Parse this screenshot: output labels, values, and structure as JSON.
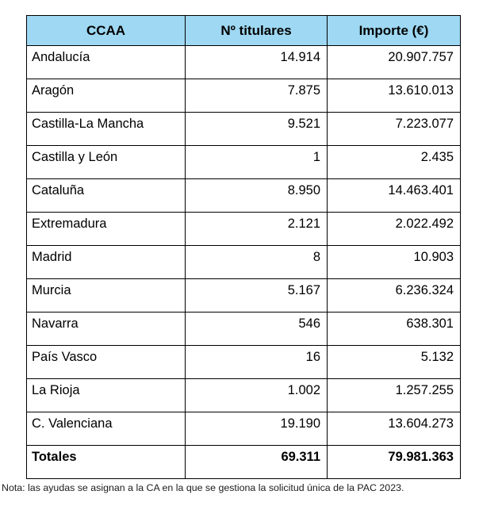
{
  "colors": {
    "header_bg": "#9ED8F2",
    "border": "#000000",
    "text": "#000000"
  },
  "table": {
    "columns": [
      "CCAA",
      "Nº titulares",
      "Importe (€)"
    ],
    "rows": [
      {
        "ccaa": "Andalucía",
        "titulares": "14.914",
        "importe": "20.907.757"
      },
      {
        "ccaa": "Aragón",
        "titulares": "7.875",
        "importe": "13.610.013"
      },
      {
        "ccaa": "Castilla-La Mancha",
        "titulares": "9.521",
        "importe": "7.223.077"
      },
      {
        "ccaa": "Castilla y León",
        "titulares": "1",
        "importe": "2.435"
      },
      {
        "ccaa": "Cataluña",
        "titulares": "8.950",
        "importe": "14.463.401"
      },
      {
        "ccaa": "Extremadura",
        "titulares": "2.121",
        "importe": "2.022.492"
      },
      {
        "ccaa": "Madrid",
        "titulares": "8",
        "importe": "10.903"
      },
      {
        "ccaa": "Murcia",
        "titulares": "5.167",
        "importe": "6.236.324"
      },
      {
        "ccaa": "Navarra",
        "titulares": "546",
        "importe": "638.301"
      },
      {
        "ccaa": "País Vasco",
        "titulares": "16",
        "importe": "5.132"
      },
      {
        "ccaa": "La Rioja",
        "titulares": "1.002",
        "importe": "1.257.255"
      },
      {
        "ccaa": "C. Valenciana",
        "titulares": "19.190",
        "importe": "13.604.273"
      }
    ],
    "totals": {
      "ccaa": "Totales",
      "titulares": "69.311",
      "importe": "79.981.363"
    }
  },
  "note": "Nota: las ayudas se asignan a la CA en la que se gestiona la solicitud única de la PAC 2023."
}
